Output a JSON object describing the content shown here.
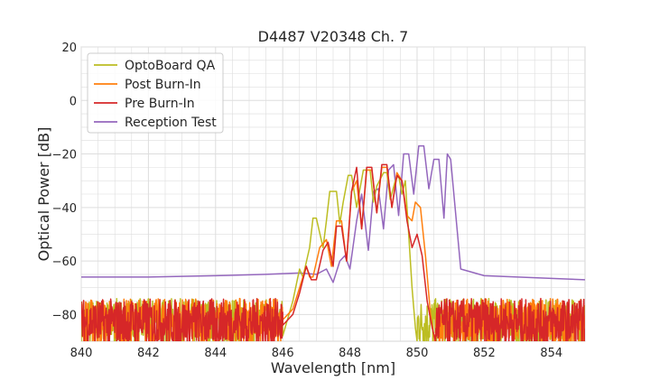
{
  "chart_data": {
    "type": "line",
    "title": "D4487 V20348 Ch. 7",
    "xlabel": "Wavelength [nm]",
    "ylabel": "Optical Power [dB]",
    "xlim": [
      840,
      855
    ],
    "ylim": [
      -90,
      20
    ],
    "xticks": [
      "840",
      "842",
      "844",
      "846",
      "848",
      "850",
      "852",
      "854"
    ],
    "yticks": [
      "20",
      "0",
      "−20",
      "−40",
      "−60",
      "−80"
    ],
    "grid": true,
    "legend_position": "top-left",
    "series": [
      {
        "name": "OptoBoard QA",
        "color": "#bcbd22",
        "noise_floor": true,
        "x": [
          846.0,
          846.3,
          846.5,
          846.6,
          846.8,
          846.9,
          847.0,
          847.2,
          847.3,
          847.4,
          847.6,
          847.7,
          847.8,
          847.95,
          848.05,
          848.2,
          848.3,
          848.4,
          848.6,
          848.7,
          848.8,
          849.0,
          849.1,
          849.2,
          849.35,
          849.45,
          849.55,
          849.65,
          849.75,
          849.85,
          849.95,
          850.0
        ],
        "y": [
          -88,
          -75,
          -63,
          -66,
          -55,
          -44,
          -44,
          -55,
          -45,
          -34,
          -34,
          -46,
          -38,
          -28,
          -28,
          -40,
          -33,
          -26,
          -26,
          -38,
          -32,
          -27,
          -27,
          -37,
          -30,
          -28,
          -35,
          -30,
          -50,
          -70,
          -85,
          -90
        ]
      },
      {
        "name": "Post Burn-In",
        "color": "#ff7f0e",
        "noise_floor": true,
        "x": [
          846.0,
          846.3,
          846.5,
          846.7,
          846.8,
          846.9,
          847.1,
          847.3,
          847.45,
          847.6,
          847.75,
          847.9,
          848.05,
          848.2,
          848.35,
          848.5,
          848.65,
          848.8,
          848.95,
          849.1,
          849.25,
          849.4,
          849.55,
          849.7,
          849.85,
          849.95,
          850.1,
          850.25,
          850.4,
          850.5
        ],
        "y": [
          -82,
          -78,
          -70,
          -62,
          -66,
          -66,
          -55,
          -52,
          -62,
          -45,
          -45,
          -60,
          -34,
          -30,
          -48,
          -26,
          -26,
          -42,
          -25,
          -25,
          -40,
          -27,
          -30,
          -43,
          -45,
          -38,
          -40,
          -58,
          -80,
          -88
        ]
      },
      {
        "name": "Pre Burn-In",
        "color": "#d62728",
        "noise_floor": true,
        "x": [
          846.0,
          846.3,
          846.5,
          846.7,
          846.85,
          847.0,
          847.2,
          847.35,
          847.5,
          847.6,
          847.75,
          847.9,
          848.05,
          848.2,
          848.35,
          848.5,
          848.65,
          848.8,
          848.95,
          849.1,
          849.25,
          849.4,
          849.55,
          849.7,
          849.85,
          850.0,
          850.15,
          850.3,
          850.45,
          850.55
        ],
        "y": [
          -84,
          -80,
          -72,
          -62,
          -67,
          -67,
          -56,
          -53,
          -62,
          -47,
          -47,
          -60,
          -34,
          -25,
          -48,
          -25,
          -25,
          -42,
          -24,
          -24,
          -40,
          -28,
          -30,
          -45,
          -55,
          -50,
          -58,
          -75,
          -85,
          -90
        ]
      },
      {
        "name": "Reception Test",
        "color": "#9467bd",
        "noise_floor": false,
        "x": [
          840.0,
          842.0,
          844.0,
          845.5,
          846.5,
          847.0,
          847.3,
          847.5,
          847.7,
          847.85,
          848.0,
          848.2,
          848.35,
          848.55,
          848.7,
          848.85,
          849.0,
          849.15,
          849.3,
          849.45,
          849.6,
          849.75,
          849.9,
          850.05,
          850.2,
          850.35,
          850.5,
          850.65,
          850.8,
          850.9,
          851.0,
          851.3,
          852.0,
          853.0,
          854.0,
          855.0
        ],
        "y": [
          -66,
          -66,
          -65.5,
          -65,
          -64.5,
          -65,
          -63,
          -68,
          -60,
          -58,
          -63,
          -45,
          -35,
          -56,
          -34,
          -33,
          -48,
          -26,
          -24,
          -43,
          -20,
          -20,
          -35,
          -17,
          -17,
          -33,
          -22,
          -22,
          -44,
          -20,
          -22,
          -63,
          -65.5,
          -66,
          -66.5,
          -67
        ]
      }
    ]
  }
}
